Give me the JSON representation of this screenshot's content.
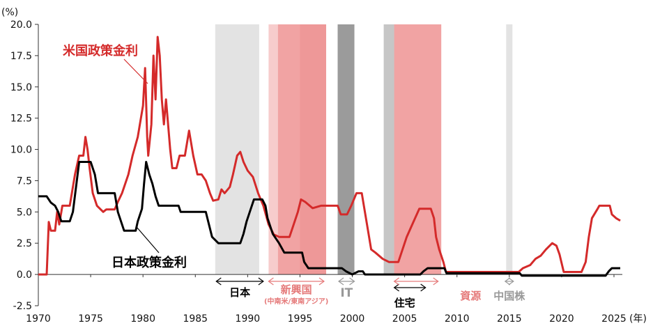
{
  "chart_data": {
    "type": "line",
    "y_unit_label": "(%)",
    "x_unit_label": "(年)",
    "xlim": [
      1970,
      2025.8
    ],
    "ylim": [
      -2.5,
      20.0
    ],
    "yticks": [
      "20.0",
      "17.5",
      "15.0",
      "12.5",
      "10.0",
      "7.5",
      "5.0",
      "2.5",
      "0.0",
      "-2.5"
    ],
    "xticks": [
      "1970",
      "1975",
      "1980",
      "1985",
      "1990",
      "1995",
      "2000",
      "2005",
      "2010",
      "2015",
      "2020",
      "2025"
    ],
    "grid": false,
    "series": [
      {
        "name": "米国政策金利",
        "color": "#d42a2a",
        "points": [
          [
            1970,
            0
          ],
          [
            1970.8,
            0
          ],
          [
            1971,
            4.2
          ],
          [
            1971.2,
            3.5
          ],
          [
            1971.6,
            3.5
          ],
          [
            1971.8,
            5
          ],
          [
            1972,
            4
          ],
          [
            1972.3,
            5.5
          ],
          [
            1973,
            5.5
          ],
          [
            1973.5,
            8
          ],
          [
            1973.9,
            9.5
          ],
          [
            1974.3,
            9.5
          ],
          [
            1974.5,
            11
          ],
          [
            1974.7,
            10
          ],
          [
            1974.9,
            8.5
          ],
          [
            1975.2,
            6.5
          ],
          [
            1975.6,
            5.5
          ],
          [
            1976.2,
            5
          ],
          [
            1976.5,
            5.2
          ],
          [
            1977.3,
            5.2
          ],
          [
            1977.6,
            5.8
          ],
          [
            1978,
            6.5
          ],
          [
            1978.6,
            8
          ],
          [
            1979,
            9.5
          ],
          [
            1979.5,
            11
          ],
          [
            1979.7,
            12
          ],
          [
            1980.0,
            13.5
          ],
          [
            1980.2,
            16.5
          ],
          [
            1980.4,
            11
          ],
          [
            1980.5,
            9.5
          ],
          [
            1980.8,
            12
          ],
          [
            1981.0,
            17.5
          ],
          [
            1981.2,
            14
          ],
          [
            1981.4,
            19
          ],
          [
            1981.6,
            17.5
          ],
          [
            1981.8,
            14
          ],
          [
            1982.0,
            12
          ],
          [
            1982.2,
            14
          ],
          [
            1982.4,
            12
          ],
          [
            1982.6,
            10
          ],
          [
            1982.8,
            8.5
          ],
          [
            1983.2,
            8.5
          ],
          [
            1983.5,
            9.5
          ],
          [
            1984.0,
            9.5
          ],
          [
            1984.4,
            11.5
          ],
          [
            1984.8,
            9.5
          ],
          [
            1985.2,
            8
          ],
          [
            1985.6,
            8
          ],
          [
            1986.0,
            7.5
          ],
          [
            1986.4,
            6.5
          ],
          [
            1986.7,
            5.9
          ],
          [
            1987.2,
            6
          ],
          [
            1987.5,
            6.8
          ],
          [
            1987.8,
            6.5
          ],
          [
            1988.3,
            7
          ],
          [
            1988.6,
            8
          ],
          [
            1989.0,
            9.5
          ],
          [
            1989.3,
            9.8
          ],
          [
            1989.6,
            9
          ],
          [
            1990.0,
            8.3
          ],
          [
            1990.5,
            7.8
          ],
          [
            1991.0,
            6.5
          ],
          [
            1991.5,
            5.5
          ],
          [
            1992.0,
            4
          ],
          [
            1992.5,
            3.2
          ],
          [
            1993.0,
            3
          ],
          [
            1994.0,
            3
          ],
          [
            1994.4,
            4
          ],
          [
            1994.8,
            5
          ],
          [
            1995.1,
            6
          ],
          [
            1995.5,
            5.8
          ],
          [
            1996.2,
            5.3
          ],
          [
            1997.0,
            5.5
          ],
          [
            1998.6,
            5.5
          ],
          [
            1998.9,
            4.8
          ],
          [
            1999.5,
            4.8
          ],
          [
            1999.9,
            5.5
          ],
          [
            2000.4,
            6.5
          ],
          [
            2000.9,
            6.5
          ],
          [
            2001.1,
            5.5
          ],
          [
            2001.4,
            4
          ],
          [
            2001.8,
            2
          ],
          [
            2002.2,
            1.75
          ],
          [
            2002.9,
            1.25
          ],
          [
            2003.5,
            1
          ],
          [
            2004.4,
            1
          ],
          [
            2004.8,
            2
          ],
          [
            2005.2,
            3
          ],
          [
            2005.6,
            3.75
          ],
          [
            2006.0,
            4.5
          ],
          [
            2006.4,
            5.25
          ],
          [
            2007.5,
            5.25
          ],
          [
            2007.8,
            4.5
          ],
          [
            2008.0,
            3
          ],
          [
            2008.3,
            2
          ],
          [
            2008.7,
            1
          ],
          [
            2008.95,
            0.2
          ],
          [
            2015.9,
            0.2
          ],
          [
            2016.3,
            0.5
          ],
          [
            2017.0,
            0.75
          ],
          [
            2017.5,
            1.25
          ],
          [
            2018.0,
            1.5
          ],
          [
            2018.5,
            2
          ],
          [
            2019.1,
            2.5
          ],
          [
            2019.5,
            2.3
          ],
          [
            2019.8,
            1.6
          ],
          [
            2020.2,
            0.2
          ],
          [
            2021.9,
            0.2
          ],
          [
            2022.3,
            1
          ],
          [
            2022.6,
            3
          ],
          [
            2022.9,
            4.5
          ],
          [
            2023.4,
            5.2
          ],
          [
            2023.6,
            5.5
          ],
          [
            2024.6,
            5.5
          ],
          [
            2024.8,
            4.8
          ],
          [
            2025.2,
            4.5
          ],
          [
            2025.6,
            4.3
          ]
        ]
      },
      {
        "name": "日本政策金利",
        "color": "#000000",
        "points": [
          [
            1970,
            6.25
          ],
          [
            1970.8,
            6.25
          ],
          [
            1971.2,
            5.75
          ],
          [
            1971.6,
            5.5
          ],
          [
            1971.9,
            5
          ],
          [
            1972.2,
            4.25
          ],
          [
            1973.0,
            4.25
          ],
          [
            1973.3,
            5
          ],
          [
            1973.6,
            7
          ],
          [
            1973.9,
            9
          ],
          [
            1975.0,
            9
          ],
          [
            1975.4,
            8
          ],
          [
            1975.7,
            6.5
          ],
          [
            1977.3,
            6.5
          ],
          [
            1977.6,
            5
          ],
          [
            1978.2,
            3.5
          ],
          [
            1979.3,
            3.5
          ],
          [
            1979.5,
            4.25
          ],
          [
            1979.9,
            5.25
          ],
          [
            1980.1,
            7.25
          ],
          [
            1980.3,
            9
          ],
          [
            1980.6,
            8
          ],
          [
            1980.9,
            7.25
          ],
          [
            1981.2,
            6.25
          ],
          [
            1981.5,
            5.5
          ],
          [
            1983.4,
            5.5
          ],
          [
            1983.6,
            5
          ],
          [
            1986.0,
            5
          ],
          [
            1986.3,
            4
          ],
          [
            1986.6,
            3
          ],
          [
            1987.2,
            2.5
          ],
          [
            1989.3,
            2.5
          ],
          [
            1989.6,
            3.25
          ],
          [
            1989.9,
            4.25
          ],
          [
            1990.3,
            5.25
          ],
          [
            1990.6,
            6
          ],
          [
            1991.4,
            6
          ],
          [
            1991.7,
            5.5
          ],
          [
            1991.9,
            4.5
          ],
          [
            1992.4,
            3.25
          ],
          [
            1993.0,
            2.5
          ],
          [
            1993.5,
            1.75
          ],
          [
            1995.2,
            1.75
          ],
          [
            1995.4,
            1
          ],
          [
            1995.8,
            0.5
          ],
          [
            1999.0,
            0.5
          ],
          [
            1999.4,
            0.25
          ],
          [
            2000.0,
            0
          ],
          [
            2000.6,
            0.25
          ],
          [
            2001.0,
            0.25
          ],
          [
            2001.2,
            0
          ],
          [
            2006.5,
            0
          ],
          [
            2006.8,
            0.25
          ],
          [
            2007.2,
            0.5
          ],
          [
            2008.8,
            0.5
          ],
          [
            2009.0,
            0.1
          ],
          [
            2016.0,
            0.1
          ],
          [
            2016.2,
            -0.1
          ],
          [
            2024.2,
            -0.1
          ],
          [
            2024.5,
            0.25
          ],
          [
            2024.8,
            0.5
          ],
          [
            2025.6,
            0.5
          ]
        ]
      }
    ],
    "shaded_periods": [
      {
        "from": 1986.9,
        "to": 1991.1,
        "color": "#e3e3e3"
      },
      {
        "from": 1992.0,
        "to": 1997.5,
        "color": "#f7cccc"
      },
      {
        "from": 1992.9,
        "to": 1997.5,
        "color": "#f1a3a3"
      },
      {
        "from": 1995.0,
        "to": 1997.5,
        "color": "#ee9898"
      },
      {
        "from": 1998.6,
        "to": 2000.2,
        "color": "#9b9b9b"
      },
      {
        "from": 2003.0,
        "to": 2006.5,
        "color": "#c6c6c6"
      },
      {
        "from": 2004.0,
        "to": 2008.5,
        "color": "#f1a3a3"
      },
      {
        "from": 2014.7,
        "to": 2015.3,
        "color": "#e3e3e3"
      }
    ],
    "series_labels": [
      {
        "text": "米国政策金利",
        "color": "#d42a2a"
      },
      {
        "text": "日本政策金利",
        "color": "#000000"
      }
    ],
    "bubble_labels": [
      {
        "text": "日本",
        "color": "#000000",
        "from": 1987,
        "to": 1991.5
      },
      {
        "text": "新興国",
        "sub": "(中南米/東南アジア)",
        "color": "#e57a7a",
        "from": 1992,
        "to": 1997.3
      },
      {
        "text": "IT",
        "color": "#999999",
        "from": 1998.7,
        "to": 2000.2
      },
      {
        "text": "住宅",
        "color": "#000000",
        "from": 2004,
        "to": 2007
      },
      {
        "text": "資源",
        "color": "#e57a7a",
        "from": 2004,
        "to": 2008.2
      },
      {
        "text": "中国株",
        "color": "#999999",
        "from": 2014.6,
        "to": 2015.4
      }
    ]
  }
}
